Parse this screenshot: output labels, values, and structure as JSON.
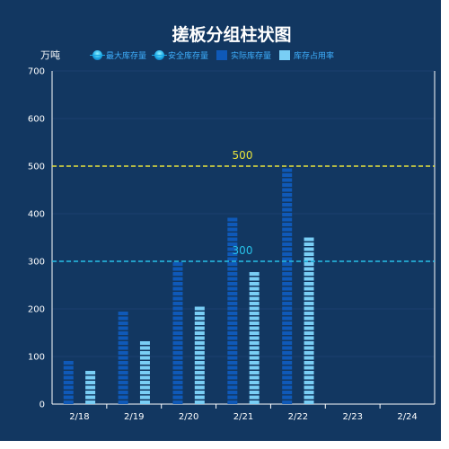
{
  "colors": {
    "background": "#123761",
    "axis": "#ffffff",
    "grid": "#1c3f6e",
    "bar_actual": "#0f59b8",
    "bar_rate": "#79cef5",
    "line_max": "#e8e33b",
    "line_safe": "#27c1e8",
    "legend_text": "#3fb0ff"
  },
  "chart_data": {
    "type": "bar",
    "title": "搓板分组柱状图",
    "ylabel_left": "万吨",
    "categories": [
      "2/18",
      "2/19",
      "2/20",
      "2/21",
      "2/22",
      "2/23",
      "2/24"
    ],
    "ylim_left": [
      0,
      700
    ],
    "yticks_left": [
      "0",
      "100",
      "200",
      "300",
      "400",
      "500",
      "600",
      "700"
    ],
    "ylim_right": [
      0,
      100
    ],
    "yticks_right": [
      "0",
      "20",
      "40",
      "60",
      "80",
      "100"
    ],
    "legend": {
      "placement": "top",
      "items": [
        {
          "name": "最大库存量",
          "marker": "line-dot",
          "color": "#e8e33b"
        },
        {
          "name": "安全库存量",
          "marker": "line-dot",
          "color": "#27c1e8"
        },
        {
          "name": "实际库存量",
          "marker": "square",
          "color": "#0f59b8"
        },
        {
          "name": "库存占用率",
          "marker": "square",
          "color": "#79cef5"
        }
      ]
    },
    "series": [
      {
        "name": "实际库存量",
        "axis": "left",
        "values": [
          100,
          200,
          300,
          400,
          500,
          null,
          null
        ]
      },
      {
        "name": "库存占用率",
        "axis": "right",
        "values": [
          10,
          20,
          30,
          40,
          50,
          null,
          null
        ]
      }
    ],
    "reference_lines": [
      {
        "name": "最大库存量",
        "value": 500,
        "label": "500"
      },
      {
        "name": "安全库存量",
        "value": 300,
        "label": "300"
      }
    ],
    "grid": true
  }
}
